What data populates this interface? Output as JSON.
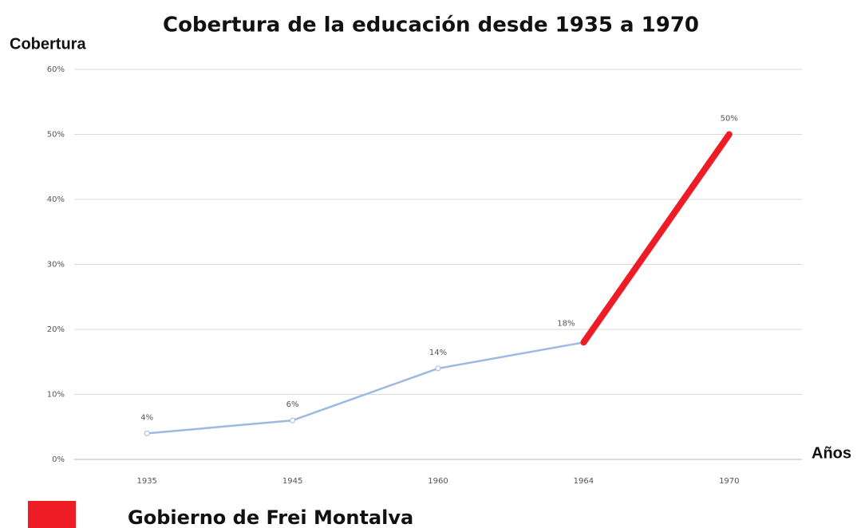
{
  "chart_data": {
    "type": "line",
    "title": "Cobertura de la educación desde 1935 a 1970",
    "y_label": "Cobertura",
    "x_label": "Años",
    "categories": [
      "1935",
      "1945",
      "1960",
      "1964",
      "1970"
    ],
    "series": [
      {
        "color": "#9db9e0",
        "values": [
          4,
          6,
          14,
          18,
          null
        ],
        "value_labels": [
          "4%",
          "6%",
          "14%",
          "18%",
          null
        ]
      },
      {
        "name": "Gobierno de Frei Montalva",
        "color": "#ee1c25",
        "values": [
          null,
          null,
          null,
          18,
          50
        ],
        "value_labels": [
          null,
          null,
          null,
          null,
          "50%"
        ]
      }
    ],
    "ylim": [
      0,
      60
    ],
    "yticks": [
      {
        "value": 0,
        "label": "0%"
      },
      {
        "value": 10,
        "label": "10%"
      },
      {
        "value": 20,
        "label": "20%"
      },
      {
        "value": 30,
        "label": "30%"
      },
      {
        "value": 40,
        "label": "40%"
      },
      {
        "value": 50,
        "label": "50%"
      },
      {
        "value": 60,
        "label": "60%"
      }
    ],
    "grid": true
  }
}
